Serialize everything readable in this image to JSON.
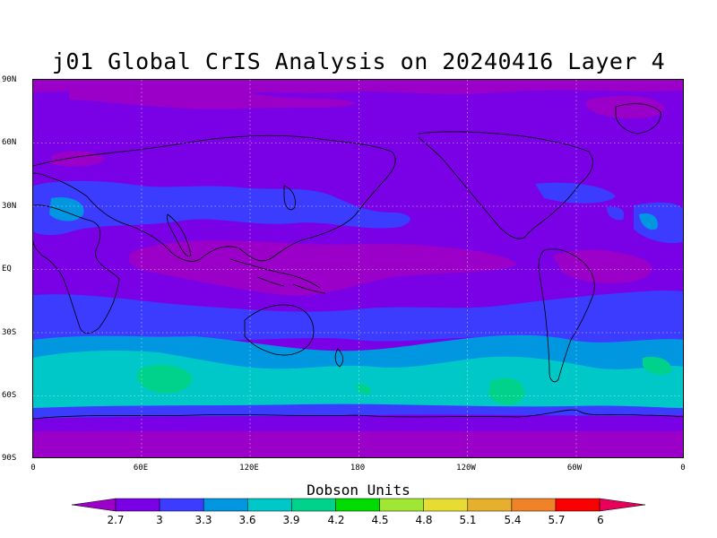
{
  "title": "j01 Global CrIS Analysis on 20240416 Layer 4",
  "lat_labels": [
    "90N",
    "60N",
    "30N",
    "EQ",
    "30S",
    "60S",
    "90S"
  ],
  "lon_labels": [
    "0",
    "60E",
    "120E",
    "180",
    "120W",
    "60W",
    "0"
  ],
  "colorbar": {
    "label": "Dobson Units",
    "ticks": [
      "2.7",
      "3",
      "3.3",
      "3.6",
      "3.9",
      "4.2",
      "4.5",
      "4.8",
      "5.1",
      "5.4",
      "5.7",
      "6"
    ],
    "colors": [
      "#9b00c8",
      "#7a00e6",
      "#3c3cff",
      "#0096e0",
      "#00c8c8",
      "#00d28c",
      "#00dc00",
      "#a0e632",
      "#e6dc32",
      "#e6af2d",
      "#f08228",
      "#fa0000",
      "#e6005a"
    ]
  },
  "chart_data": {
    "type": "heatmap",
    "title": "j01 Global CrIS Analysis on 20240416 Layer 4",
    "x_tick_labels": [
      "0",
      "60E",
      "120E",
      "180",
      "120W",
      "60W",
      "0"
    ],
    "y_tick_labels": [
      "90N",
      "60N",
      "30N",
      "EQ",
      "30S",
      "60S",
      "90S"
    ],
    "xlim": [
      0,
      360
    ],
    "ylim": [
      -90,
      90
    ],
    "colorbar_label": "Dobson Units",
    "levels": [
      2.7,
      3,
      3.3,
      3.6,
      3.9,
      4.2,
      4.5,
      4.8,
      5.1,
      5.4,
      5.7,
      6
    ],
    "grid": true
  }
}
